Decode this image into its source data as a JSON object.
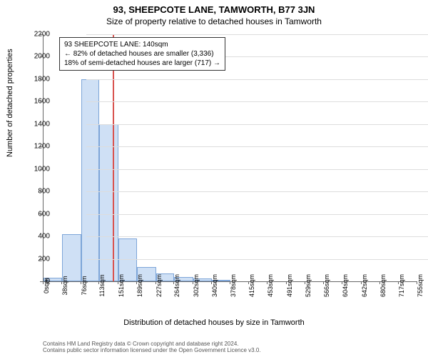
{
  "title": "93, SHEEPCOTE LANE, TAMWORTH, B77 3JN",
  "subtitle": "Size of property relative to detached houses in Tamworth",
  "ylabel": "Number of detached properties",
  "xlabel": "Distribution of detached houses by size in Tamworth",
  "chart": {
    "type": "histogram",
    "ylim": [
      0,
      2200
    ],
    "ytick_step": 200,
    "xticks": [
      "0sqm",
      "38sqm",
      "76sqm",
      "113sqm",
      "151sqm",
      "189sqm",
      "227sqm",
      "264sqm",
      "302sqm",
      "340sqm",
      "378sqm",
      "415sqm",
      "453sqm",
      "491sqm",
      "529sqm",
      "566sqm",
      "604sqm",
      "642sqm",
      "680sqm",
      "717sqm",
      "755sqm"
    ],
    "xtick_values": [
      0,
      38,
      76,
      113,
      151,
      189,
      227,
      264,
      302,
      340,
      378,
      415,
      453,
      491,
      529,
      566,
      604,
      642,
      680,
      717,
      755
    ],
    "xmax": 755,
    "bars": [
      {
        "x0": 0,
        "x1": 38,
        "count": 35
      },
      {
        "x0": 38,
        "x1": 76,
        "count": 420
      },
      {
        "x0": 76,
        "x1": 113,
        "count": 1800
      },
      {
        "x0": 113,
        "x1": 151,
        "count": 1400
      },
      {
        "x0": 151,
        "x1": 189,
        "count": 380
      },
      {
        "x0": 189,
        "x1": 227,
        "count": 130
      },
      {
        "x0": 227,
        "x1": 264,
        "count": 70
      },
      {
        "x0": 264,
        "x1": 302,
        "count": 40
      },
      {
        "x0": 302,
        "x1": 340,
        "count": 25
      },
      {
        "x0": 340,
        "x1": 378,
        "count": 15
      }
    ],
    "bar_fill": "#cfe0f5",
    "bar_stroke": "#7da5d8",
    "grid_color": "#dddddd",
    "background_color": "#ffffff",
    "marker": {
      "value_sqm": 140,
      "color": "#d9534f",
      "label_lines": [
        "93 SHEEPCOTE LANE: 140sqm",
        "← 82% of detached houses are smaller (3,336)",
        "18% of semi-detached houses are larger (717) →"
      ]
    }
  },
  "credit_line1": "Contains HM Land Registry data © Crown copyright and database right 2024.",
  "credit_line2": "Contains public sector information licensed under the Open Government Licence v3.0."
}
